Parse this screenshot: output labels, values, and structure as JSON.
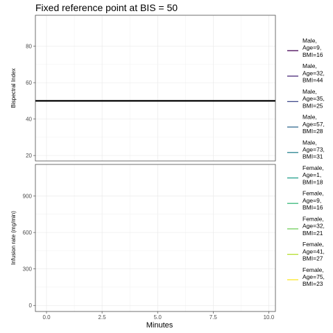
{
  "chart_data": {
    "type": "line",
    "title": "Fixed reference point at BIS = 50",
    "xlabel": "Minutes",
    "x_ticks": [
      0,
      2.5,
      5,
      7.5,
      10
    ],
    "x_tick_labels": [
      "0.0",
      "2.5",
      "5.0",
      "7.5",
      "10.0"
    ],
    "xlim": [
      -0.5,
      10.3
    ],
    "grid": true,
    "legend_position": "right",
    "panels": [
      {
        "name": "bis",
        "ylabel": "Bispectral Index",
        "ylim": [
          17,
          97
        ],
        "y_ticks": [
          20,
          40,
          60,
          80
        ],
        "y_tick_labels": [
          "20",
          "40",
          "60",
          "80"
        ],
        "reference_line": {
          "y": 50,
          "color": "#000000"
        }
      },
      {
        "name": "infusion",
        "ylabel": "Infusion rate (mg/min)",
        "ylim": [
          -50,
          1160
        ],
        "y_ticks": [
          0,
          300,
          600,
          900
        ],
        "y_tick_labels": [
          "0",
          "300",
          "600",
          "900"
        ]
      }
    ],
    "series": [
      {
        "label_lines": [
          "Male,",
          "Age=9,",
          "BMI=16"
        ],
        "color": "#440154"
      },
      {
        "label_lines": [
          "Male,",
          "Age=32,",
          "BMI=44"
        ],
        "color": "#482878"
      },
      {
        "label_lines": [
          "Male,",
          "Age=35,",
          "BMI=25"
        ],
        "color": "#3e4989"
      },
      {
        "label_lines": [
          "Male,",
          "Age=57,",
          "BMI=28"
        ],
        "color": "#31688e"
      },
      {
        "label_lines": [
          "Male,",
          "Age=73,",
          "BMI=31"
        ],
        "color": "#26828e"
      },
      {
        "label_lines": [
          "Female,",
          "Age=1,",
          "BMI=18"
        ],
        "color": "#1f9e89"
      },
      {
        "label_lines": [
          "Female,",
          "Age=9,",
          "BMI=16"
        ],
        "color": "#35b779"
      },
      {
        "label_lines": [
          "Female,",
          "Age=32,",
          "BMI=21"
        ],
        "color": "#6ece58"
      },
      {
        "label_lines": [
          "Female,",
          "Age=41,",
          "BMI=27"
        ],
        "color": "#b5de2b"
      },
      {
        "label_lines": [
          "Female,",
          "Age=75,",
          "BMI=23"
        ],
        "color": "#fde725"
      }
    ]
  }
}
